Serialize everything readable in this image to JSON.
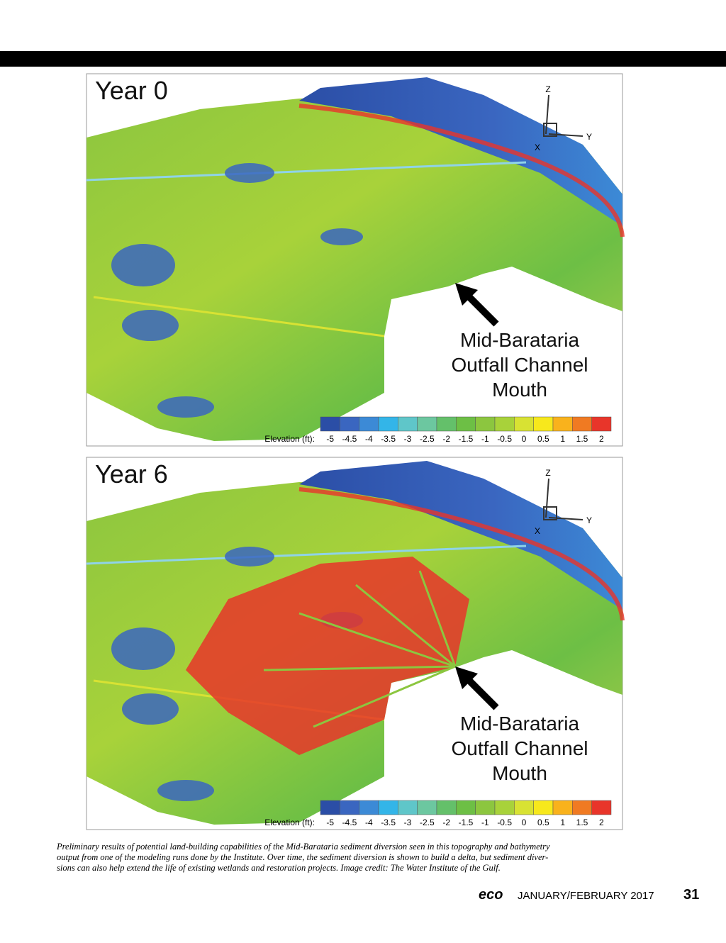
{
  "panels": [
    {
      "title": "Year 0",
      "annotation": [
        "Mid-Barataria",
        "Outfall Channel",
        "Mouth"
      ],
      "axes": [
        "Z",
        "Y",
        "X"
      ]
    },
    {
      "title": "Year 6",
      "annotation": [
        "Mid-Barataria",
        "Outfall Channel",
        "Mouth"
      ],
      "axes": [
        "Z",
        "Y",
        "X"
      ]
    }
  ],
  "colorbar": {
    "label": "Elevation (ft):",
    "ticks": [
      -5,
      -4.5,
      -4,
      -3.5,
      -3,
      -2.5,
      -2,
      -1.5,
      -1,
      -0.5,
      0,
      0.5,
      1,
      1.5,
      2
    ],
    "colors": [
      "#2b4ea6",
      "#3a66c0",
      "#3c8ad6",
      "#33b5e8",
      "#5fc6c9",
      "#6cc7a0",
      "#64c06a",
      "#6dbf45",
      "#8cc63f",
      "#a8d23a",
      "#d8e233",
      "#f7e81c",
      "#f9b21c",
      "#f07a22",
      "#e8352a"
    ]
  },
  "caption": [
    "Preliminary results of potential land-building capabilities of the Mid-Barataria sediment diversion seen in this topography and bathymetry",
    "output from one of the modeling runs done by the Institute. Over time, the sediment diversion is shown to build a delta, but sediment diver-",
    "sions can also help extend the life of existing wetlands and restoration projects.  Image credit: The Water Institute of the Gulf."
  ],
  "footer": {
    "brand": "eco",
    "issue": "JANUARY/FEBRUARY 2017",
    "page": "31"
  }
}
